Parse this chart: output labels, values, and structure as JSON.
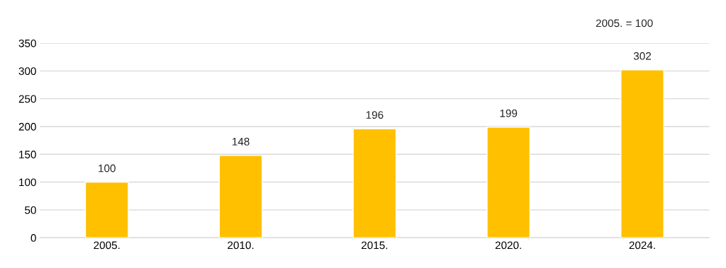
{
  "chart_data": {
    "type": "bar",
    "categories": [
      "2005.",
      "2010.",
      "2015.",
      "2020.",
      "2024."
    ],
    "values": [
      100,
      148,
      196,
      199,
      302
    ],
    "color": "#ffc000",
    "ylim": [
      0,
      350
    ],
    "yticks": [
      0,
      50,
      100,
      150,
      200,
      250,
      300,
      350
    ],
    "grid": "y",
    "data_labels": true,
    "annotations": [
      "2005. = 100"
    ]
  }
}
